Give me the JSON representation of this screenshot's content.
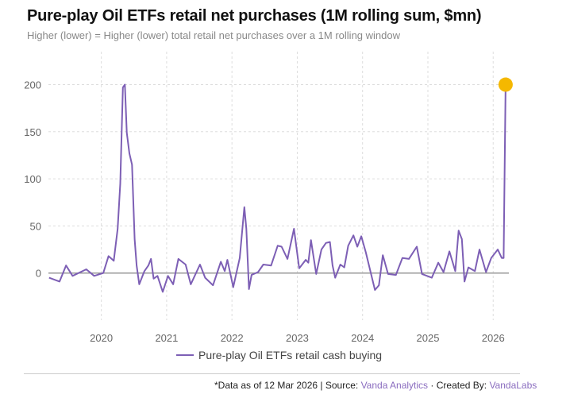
{
  "chart_data": {
    "type": "line",
    "title": "Pure-play Oil ETFs retail net purchases (1M rolling sum, $mn)",
    "subtitle": "Higher (lower) = Higher (lower) total retail net purchases over a 1M rolling window",
    "xlabel": "",
    "ylabel": "",
    "xlim": [
      2019.19,
      2026.24
    ],
    "ylim": [
      -50,
      235
    ],
    "x_ticks": [
      2020,
      2021,
      2022,
      2023,
      2024,
      2025,
      2026
    ],
    "y_ticks": [
      0,
      50,
      100,
      150,
      200
    ],
    "grid": true,
    "legend_position": "bottom",
    "colors": {
      "series": "#7d5fb5",
      "marker": "#f5b800",
      "zero_line": "#999999",
      "grid": "#dddddd"
    },
    "series": [
      {
        "name": "Pure-play Oil ETFs retail cash buying",
        "points": [
          [
            2019.2,
            -5
          ],
          [
            2019.36,
            -9
          ],
          [
            2019.46,
            8
          ],
          [
            2019.56,
            -3
          ],
          [
            2019.77,
            4
          ],
          [
            2019.89,
            -3
          ],
          [
            2020.03,
            0
          ],
          [
            2020.11,
            18
          ],
          [
            2020.19,
            13
          ],
          [
            2020.25,
            47
          ],
          [
            2020.29,
            95
          ],
          [
            2020.33,
            197
          ],
          [
            2020.36,
            200
          ],
          [
            2020.39,
            149
          ],
          [
            2020.43,
            127
          ],
          [
            2020.47,
            115
          ],
          [
            2020.51,
            36
          ],
          [
            2020.54,
            8
          ],
          [
            2020.58,
            -12
          ],
          [
            2020.66,
            2
          ],
          [
            2020.72,
            8
          ],
          [
            2020.76,
            15
          ],
          [
            2020.8,
            -6
          ],
          [
            2020.86,
            -3
          ],
          [
            2020.94,
            -20
          ],
          [
            2021.02,
            -3
          ],
          [
            2021.1,
            -12
          ],
          [
            2021.18,
            15
          ],
          [
            2021.29,
            9
          ],
          [
            2021.37,
            -12
          ],
          [
            2021.51,
            9
          ],
          [
            2021.59,
            -5
          ],
          [
            2021.71,
            -13
          ],
          [
            2021.83,
            12
          ],
          [
            2021.89,
            2
          ],
          [
            2021.93,
            14
          ],
          [
            2022.02,
            -15
          ],
          [
            2022.12,
            16
          ],
          [
            2022.19,
            70
          ],
          [
            2022.22,
            47
          ],
          [
            2022.26,
            -17
          ],
          [
            2022.3,
            -2
          ],
          [
            2022.4,
            1
          ],
          [
            2022.48,
            9
          ],
          [
            2022.6,
            8
          ],
          [
            2022.7,
            29
          ],
          [
            2022.76,
            28
          ],
          [
            2022.85,
            15
          ],
          [
            2022.95,
            47
          ],
          [
            2023.03,
            5
          ],
          [
            2023.13,
            14
          ],
          [
            2023.17,
            11
          ],
          [
            2023.21,
            35
          ],
          [
            2023.29,
            -1
          ],
          [
            2023.37,
            25
          ],
          [
            2023.44,
            32
          ],
          [
            2023.5,
            33
          ],
          [
            2023.54,
            8
          ],
          [
            2023.58,
            -5
          ],
          [
            2023.66,
            9
          ],
          [
            2023.72,
            6
          ],
          [
            2023.78,
            29
          ],
          [
            2023.86,
            40
          ],
          [
            2023.92,
            28
          ],
          [
            2023.98,
            39
          ],
          [
            2024.05,
            22
          ],
          [
            2024.13,
            -1
          ],
          [
            2024.19,
            -18
          ],
          [
            2024.25,
            -13
          ],
          [
            2024.31,
            19
          ],
          [
            2024.39,
            -1
          ],
          [
            2024.51,
            -2
          ],
          [
            2024.61,
            16
          ],
          [
            2024.71,
            15
          ],
          [
            2024.83,
            28
          ],
          [
            2024.91,
            -1
          ],
          [
            2025.06,
            -5
          ],
          [
            2025.16,
            11
          ],
          [
            2025.24,
            1
          ],
          [
            2025.33,
            23
          ],
          [
            2025.42,
            2
          ],
          [
            2025.47,
            45
          ],
          [
            2025.52,
            36
          ],
          [
            2025.56,
            -9
          ],
          [
            2025.62,
            6
          ],
          [
            2025.72,
            2
          ],
          [
            2025.79,
            25
          ],
          [
            2025.89,
            1
          ],
          [
            2025.97,
            16
          ],
          [
            2026.07,
            25
          ],
          [
            2026.13,
            16
          ],
          [
            2026.16,
            16
          ],
          [
            2026.19,
            200
          ]
        ]
      }
    ],
    "highlight_point": [
      2026.19,
      200
    ]
  },
  "legend": {
    "label": "Pure-play Oil ETFs retail cash buying"
  },
  "footer": {
    "prefix": "*Data as of 12 Mar 2026 | Source: ",
    "source": "Vanda Analytics",
    "middle": " · Created By: ",
    "creator": "VandaLabs"
  }
}
